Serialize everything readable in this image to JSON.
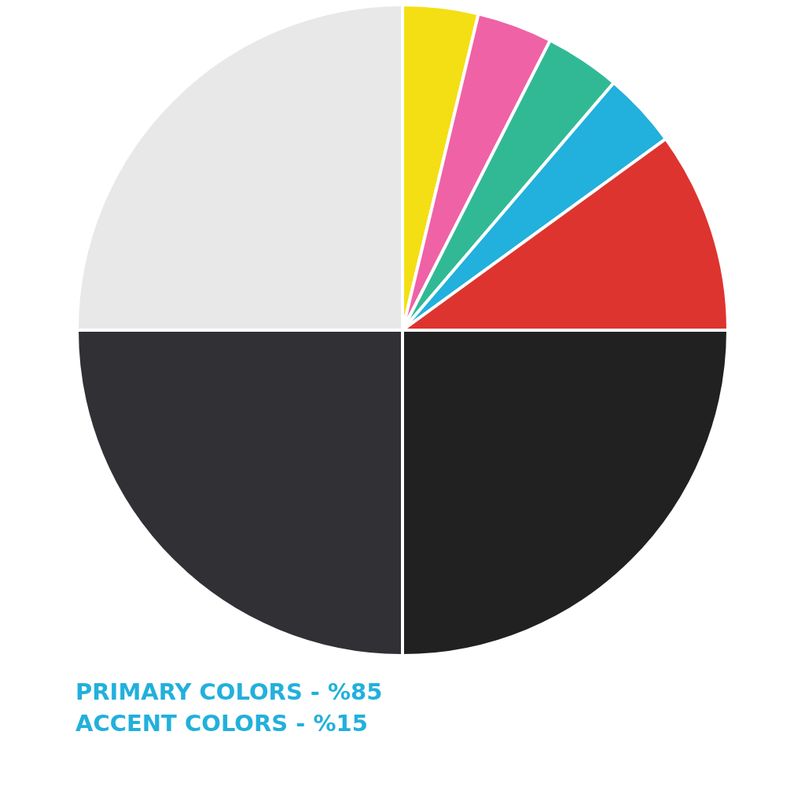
{
  "chart_data": {
    "type": "pie",
    "categories": [
      null,
      null,
      null,
      null,
      null,
      null,
      null,
      null
    ],
    "values": [
      3.75,
      3.75,
      3.75,
      3.75,
      10,
      25,
      25,
      25
    ],
    "colors": [
      "#f4df14",
      "#ef62a6",
      "#31b995",
      "#22b0dc",
      "#de342f",
      "#212121",
      "#313035",
      "#e8e8e8"
    ],
    "annotations": [
      "PRIMARY COLORS - %85",
      "ACCENT COLORS - %15"
    ],
    "legend": false
  }
}
